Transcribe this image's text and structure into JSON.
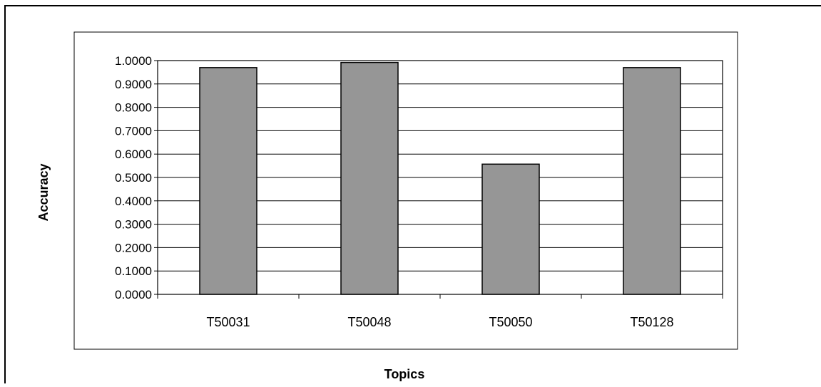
{
  "chart_data": {
    "type": "bar",
    "title": "",
    "xlabel": "Topics",
    "ylabel": "Accuracy",
    "categories": [
      "T50031",
      "T50048",
      "T50050",
      "T50128"
    ],
    "values": [
      0.97,
      0.992,
      0.557,
      0.97
    ],
    "ylim": [
      0,
      1
    ],
    "yticks": [
      "0.0000",
      "0.1000",
      "0.2000",
      "0.3000",
      "0.4000",
      "0.5000",
      "0.6000",
      "0.7000",
      "0.8000",
      "0.9000",
      "1.0000"
    ],
    "grid": true,
    "legend": "none",
    "bar_color": "#969696",
    "bar_edge_color": "#000000"
  }
}
